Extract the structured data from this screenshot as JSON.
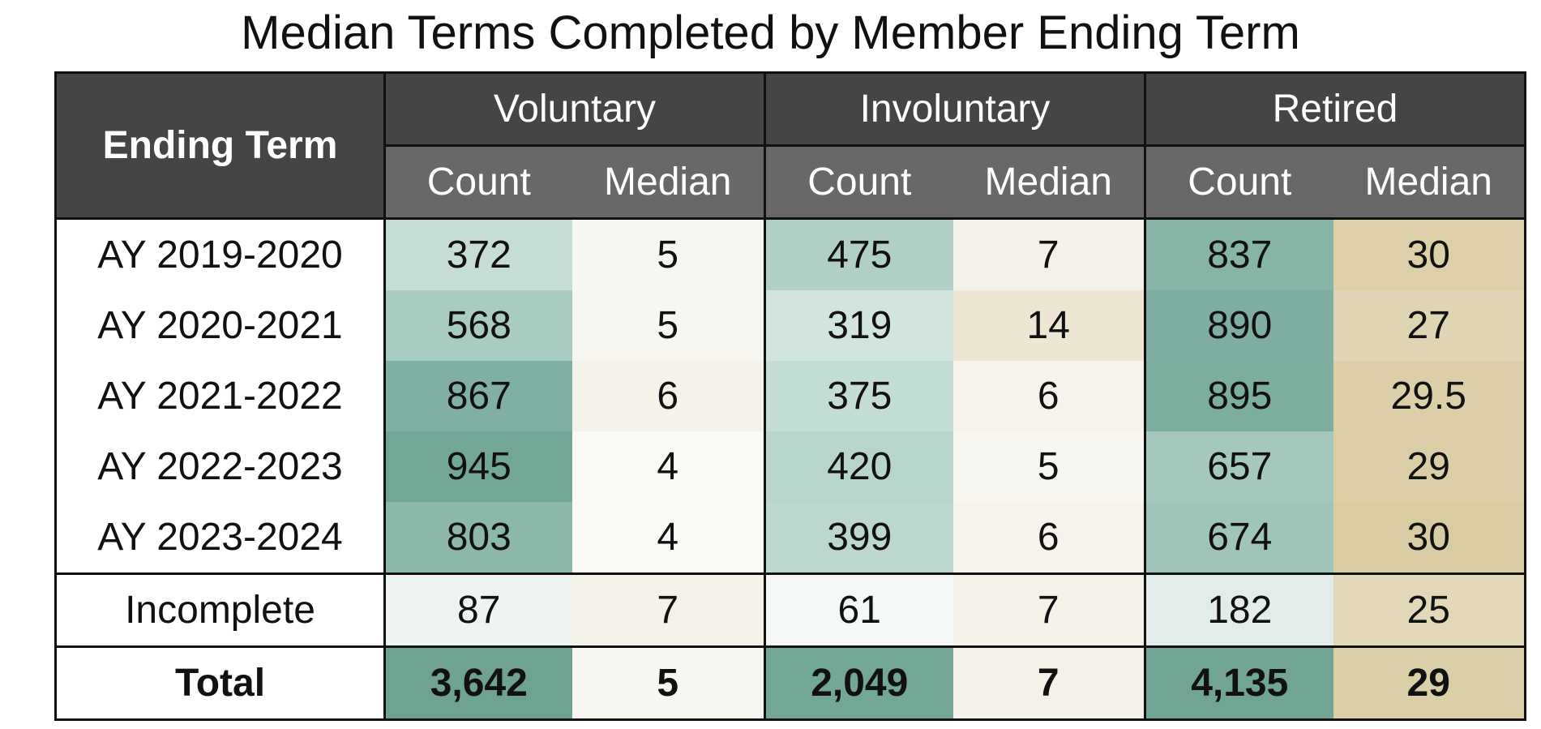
{
  "title": "Median Terms Completed by Member Ending Term",
  "table": {
    "header": {
      "first": "Ending Term",
      "groups": [
        "Voluntary",
        "Involuntary",
        "Retired"
      ],
      "subheaders": [
        "Count",
        "Median",
        "Count",
        "Median",
        "Count",
        "Median"
      ]
    },
    "rows": [
      [
        "AY 2019-2020",
        372,
        5,
        475,
        7,
        837,
        30
      ],
      [
        "AY 2020-2021",
        568,
        5,
        319,
        14,
        890,
        27
      ],
      [
        "AY 2021-2022",
        867,
        6,
        375,
        6,
        895,
        29.5
      ],
      [
        "AY 2022-2023",
        945,
        4,
        420,
        5,
        657,
        29
      ],
      [
        "AY 2023-2024",
        803,
        4,
        399,
        6,
        674,
        30
      ],
      [
        "Incomplete",
        87,
        7,
        61,
        7,
        182,
        25
      ],
      [
        "Total",
        "3,642",
        5,
        "2,049",
        7,
        "4,135",
        29
      ]
    ]
  }
}
